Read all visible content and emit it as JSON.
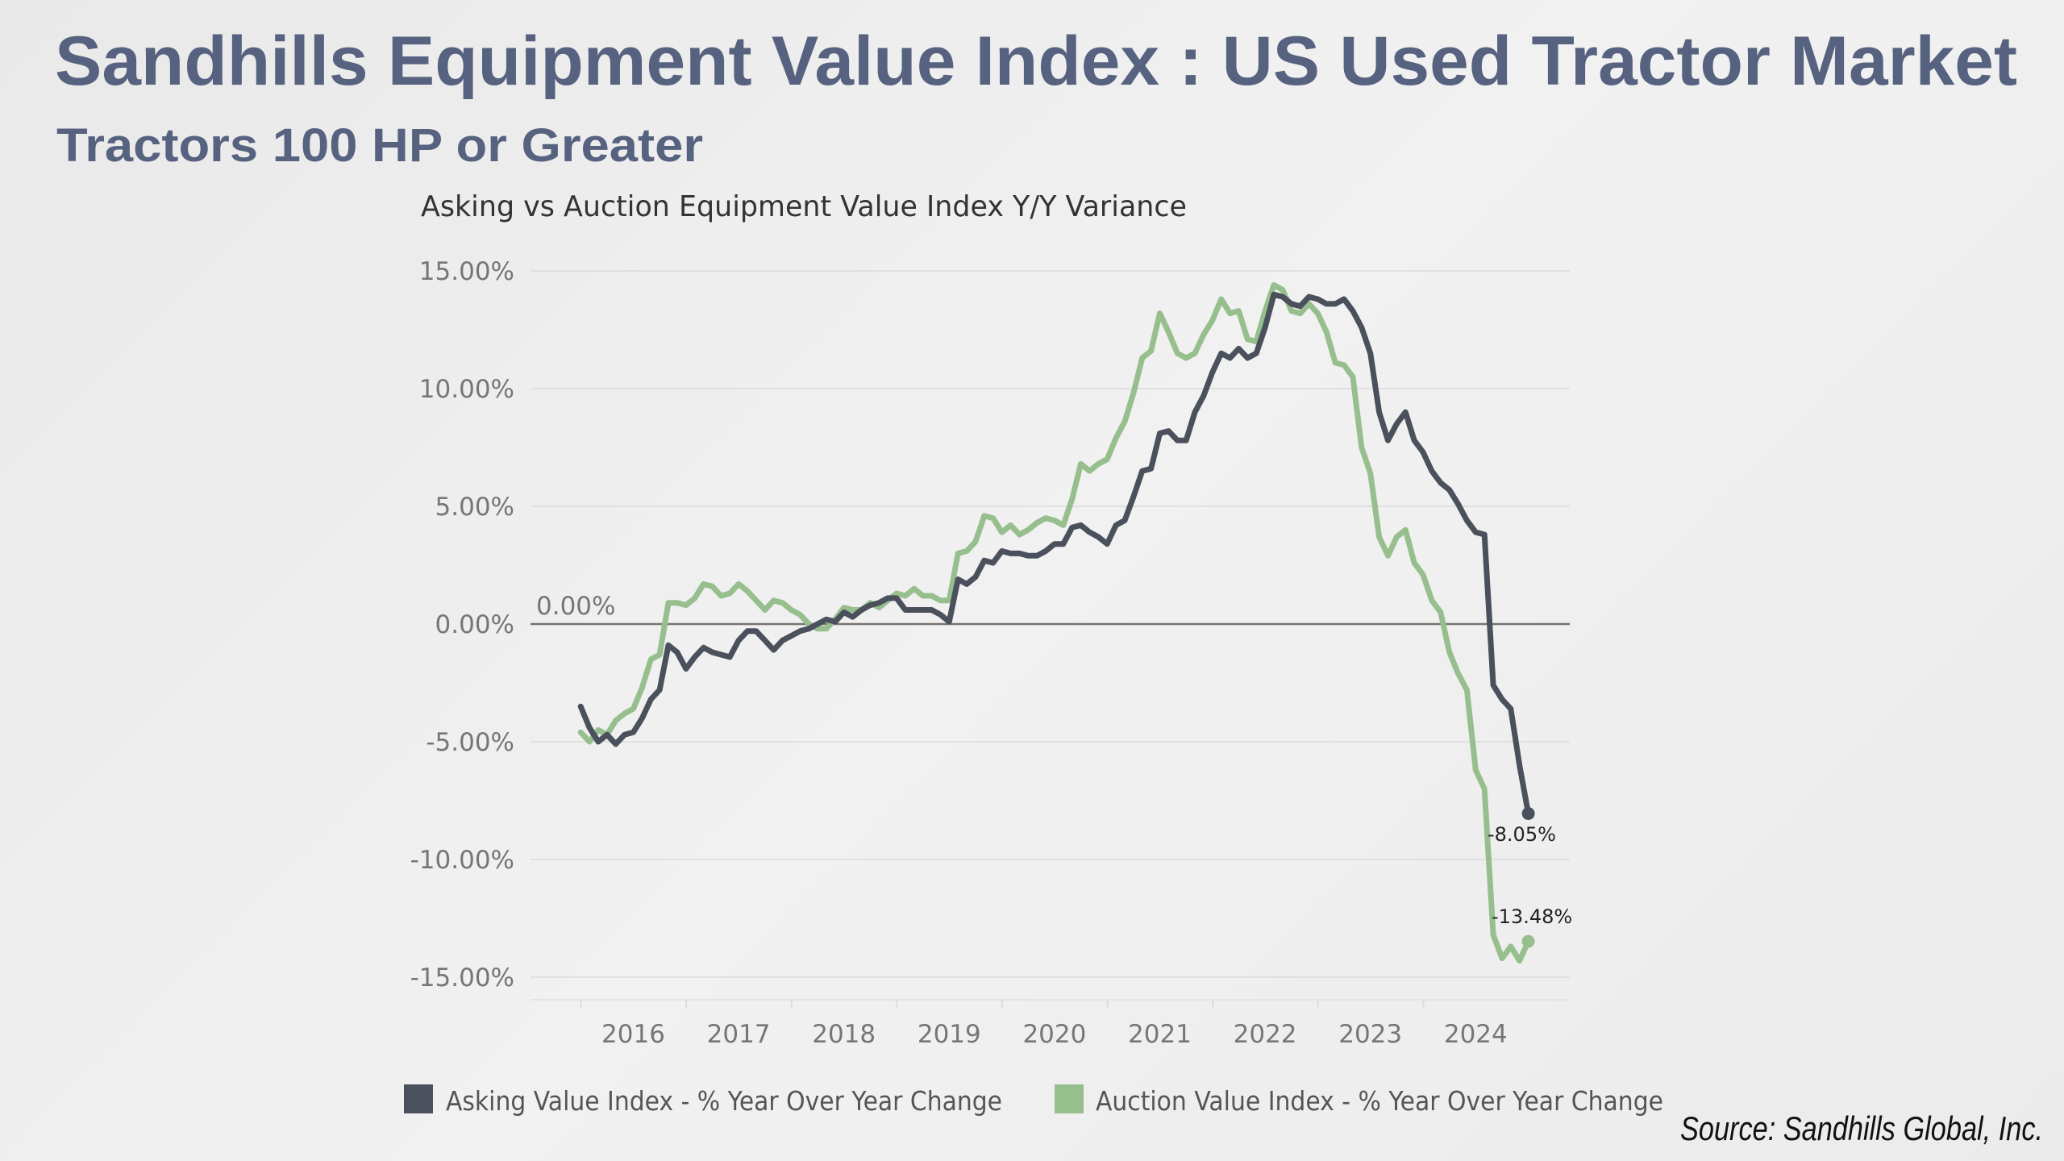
{
  "header": {
    "title": "Sandhills Equipment Value Index : US Used Tractor Market",
    "subtitle": "Tractors 100 HP or Greater"
  },
  "source": "Source: Sandhills Global, Inc.",
  "chart_data": {
    "type": "line",
    "title": "Asking vs Auction Equipment Value Index Y/Y Variance",
    "xlabel": "",
    "ylabel": "",
    "ylim": [
      -15,
      15
    ],
    "y_ticks": [
      "15.00%",
      "10.00%",
      "5.00%",
      "0.00%",
      "-5.00%",
      "-10.00%",
      "-15.00%"
    ],
    "y_tick_values": [
      15,
      10,
      5,
      0,
      -5,
      -10,
      -15
    ],
    "x_ticks": [
      "2016",
      "2017",
      "2018",
      "2019",
      "2020",
      "2021",
      "2022",
      "2023",
      "2024"
    ],
    "grid": true,
    "legend_position": "bottom",
    "zero_line_label": "0.00%",
    "x": [
      "2015-07",
      "2015-08",
      "2015-09",
      "2015-10",
      "2015-11",
      "2015-12",
      "2016-01",
      "2016-02",
      "2016-03",
      "2016-04",
      "2016-05",
      "2016-06",
      "2016-07",
      "2016-08",
      "2016-09",
      "2016-10",
      "2016-11",
      "2016-12",
      "2017-01",
      "2017-02",
      "2017-03",
      "2017-04",
      "2017-05",
      "2017-06",
      "2017-07",
      "2017-08",
      "2017-09",
      "2017-10",
      "2017-11",
      "2017-12",
      "2018-01",
      "2018-02",
      "2018-03",
      "2018-04",
      "2018-05",
      "2018-06",
      "2018-07",
      "2018-08",
      "2018-09",
      "2018-10",
      "2018-11",
      "2018-12",
      "2019-01",
      "2019-02",
      "2019-03",
      "2019-04",
      "2019-05",
      "2019-06",
      "2019-07",
      "2019-08",
      "2019-09",
      "2019-10",
      "2019-11",
      "2019-12",
      "2020-01",
      "2020-02",
      "2020-03",
      "2020-04",
      "2020-05",
      "2020-06",
      "2020-07",
      "2020-08",
      "2020-09",
      "2020-10",
      "2020-11",
      "2020-12",
      "2021-01",
      "2021-02",
      "2021-03",
      "2021-04",
      "2021-05",
      "2021-06",
      "2021-07",
      "2021-08",
      "2021-09",
      "2021-10",
      "2021-11",
      "2021-12",
      "2022-01",
      "2022-02",
      "2022-03",
      "2022-04",
      "2022-05",
      "2022-06",
      "2022-07",
      "2022-08",
      "2022-09",
      "2022-10",
      "2022-11",
      "2022-12",
      "2023-01",
      "2023-02",
      "2023-03",
      "2023-04",
      "2023-05",
      "2023-06",
      "2023-07",
      "2023-08",
      "2023-09",
      "2023-10",
      "2023-11",
      "2023-12",
      "2024-01",
      "2024-02",
      "2024-03",
      "2024-04",
      "2024-05",
      "2024-06",
      "2024-07"
    ],
    "series": [
      {
        "name": "Asking Value Index - % Year Over Year Change",
        "color": "#4a505c",
        "end_label": "-8.05%",
        "values": [
          -3.5,
          -4.4,
          -5.0,
          -4.7,
          -5.1,
          -4.7,
          -4.6,
          -4.0,
          -3.2,
          -2.8,
          -0.9,
          -1.2,
          -1.9,
          -1.4,
          -1.0,
          -1.2,
          -1.3,
          -1.4,
          -0.7,
          -0.3,
          -0.3,
          -0.7,
          -1.1,
          -0.7,
          -0.5,
          -0.3,
          -0.2,
          0.0,
          0.2,
          0.1,
          0.5,
          0.3,
          0.6,
          0.8,
          0.9,
          1.1,
          1.1,
          0.6,
          0.6,
          0.6,
          0.6,
          0.4,
          0.1,
          1.9,
          1.7,
          2.0,
          2.7,
          2.6,
          3.1,
          3.0,
          3.0,
          2.9,
          2.9,
          3.1,
          3.4,
          3.4,
          4.1,
          4.2,
          3.9,
          3.7,
          3.4,
          4.2,
          4.4,
          5.4,
          6.5,
          6.6,
          8.1,
          8.2,
          7.8,
          7.8,
          9.0,
          9.7,
          10.7,
          11.5,
          11.3,
          11.7,
          11.3,
          11.5,
          12.6,
          14.0,
          13.9,
          13.6,
          13.5,
          13.9,
          13.8,
          13.6,
          13.6,
          13.8,
          13.3,
          12.6,
          11.5,
          9.0,
          7.8,
          8.5,
          9.0,
          7.8,
          7.3,
          6.5,
          6.0,
          5.7,
          5.1,
          4.4,
          3.9,
          3.8,
          -2.6,
          -3.2,
          -3.6,
          -6.0,
          -8.05
        ]
      },
      {
        "name": "Auction Value Index - % Year Over Year Change",
        "color": "#97bf8e",
        "end_label": "-13.48%",
        "values": [
          -4.6,
          -5.0,
          -4.5,
          -4.7,
          -4.1,
          -3.8,
          -3.6,
          -2.7,
          -1.5,
          -1.3,
          0.9,
          0.9,
          0.8,
          1.1,
          1.7,
          1.6,
          1.2,
          1.3,
          1.7,
          1.4,
          1.0,
          0.6,
          1.0,
          0.9,
          0.6,
          0.4,
          0.0,
          -0.2,
          -0.2,
          0.2,
          0.7,
          0.6,
          0.6,
          0.9,
          0.7,
          1.0,
          1.3,
          1.2,
          1.5,
          1.2,
          1.2,
          1.0,
          1.0,
          3.0,
          3.1,
          3.5,
          4.6,
          4.5,
          3.9,
          4.2,
          3.8,
          4.0,
          4.3,
          4.5,
          4.4,
          4.2,
          5.3,
          6.8,
          6.5,
          6.8,
          7.0,
          7.9,
          8.6,
          9.8,
          11.3,
          11.6,
          13.2,
          12.4,
          11.5,
          11.3,
          11.5,
          12.3,
          12.9,
          13.8,
          13.2,
          13.3,
          12.1,
          12.0,
          13.3,
          14.4,
          14.2,
          13.3,
          13.2,
          13.6,
          13.2,
          12.4,
          11.1,
          11.0,
          10.5,
          7.5,
          6.4,
          3.7,
          2.9,
          3.7,
          4.0,
          2.6,
          2.1,
          1.0,
          0.5,
          -1.2,
          -2.1,
          -2.8,
          -6.2,
          -7.0,
          -13.2,
          -14.2,
          -13.7,
          -14.3,
          -13.48
        ]
      }
    ]
  }
}
